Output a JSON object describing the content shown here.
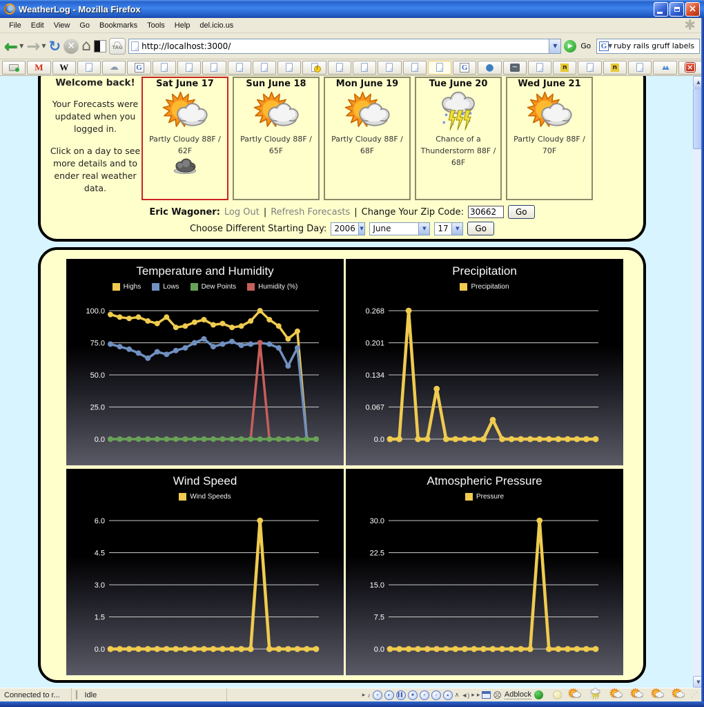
{
  "window": {
    "title": "WeatherLog - Mozilla Firefox"
  },
  "menu": {
    "items": [
      "File",
      "Edit",
      "View",
      "Go",
      "Bookmarks",
      "Tools",
      "Help",
      "del.icio.us"
    ]
  },
  "toolbar": {
    "url": "http://localhost:3000/",
    "go_label": "Go",
    "search_value": "ruby rails gruff labels",
    "tag_label": "TAG"
  },
  "bookmarks": [
    "printer-icon",
    "gmail-icon",
    "wikipedia-icon",
    "page-icon",
    "cloud-icon",
    "google-icon",
    "page-icon",
    "page-icon",
    "page-icon",
    "page-icon",
    "page-icon",
    "page-icon",
    "alert-page-icon",
    "page-icon",
    "page-icon",
    "page-icon",
    "page-icon",
    "selected-page-icon",
    "google-icon",
    "drupal-icon",
    "wave-icon",
    "page-icon",
    "npr-icon",
    "page-icon",
    "npr-icon",
    "page-icon",
    "mountain-icon",
    "close-icon"
  ],
  "panel": {
    "sidebar": {
      "heading": "Welcome back!",
      "para1": "Your Forecasts were updated when you logged in.",
      "para2": "Click on a day to see more details and to ender real weather data."
    }
  },
  "forecast": {
    "days": [
      {
        "label": "Sat June 17",
        "condition": "Partly Cloudy 88F / 62F",
        "icon": "partly-cloudy",
        "selected": true,
        "extra_icon": "dark-cloud"
      },
      {
        "label": "Sun June 18",
        "condition": "Partly Cloudy 88F / 65F",
        "icon": "partly-cloudy",
        "selected": false
      },
      {
        "label": "Mon June 19",
        "condition": "Partly Cloudy 88F / 68F",
        "icon": "partly-cloudy",
        "selected": false
      },
      {
        "label": "Tue June 20",
        "condition": "Chance of a Thunderstorm 88F / 68F",
        "icon": "thunderstorm",
        "selected": false
      },
      {
        "label": "Wed June 21",
        "condition": "Partly Cloudy 88F / 70F",
        "icon": "partly-cloudy",
        "selected": false
      }
    ]
  },
  "account": {
    "name": "Eric Wagoner:",
    "logout": "Log Out",
    "sep": "|",
    "refresh": "Refresh Forecasts",
    "zip_label": "Change Your Zip Code:",
    "zip_value": "30662",
    "go": "Go"
  },
  "starting": {
    "label": "Choose Different Starting Day:",
    "year": "2006",
    "month": "June",
    "day": "17",
    "go": "Go"
  },
  "chart_data": [
    {
      "type": "line",
      "title": "Temperature and Humidity",
      "xlabel": "",
      "ylabel": "",
      "ylim": [
        0,
        100
      ],
      "ytick_labels": [
        "100.0",
        "75.0",
        "50.0",
        "25.0",
        "0.0"
      ],
      "grid": true,
      "legend_position": "top",
      "x_note": "23 consecutive forecast days, unlabeled x-axis",
      "draw_order": [
        0,
        1,
        3,
        2
      ],
      "series": [
        {
          "name": "Highs",
          "color": "#EFCB4F",
          "values": [
            97,
            95,
            94,
            95,
            92,
            90,
            95,
            87,
            88,
            91,
            93,
            89,
            90,
            87,
            88,
            92,
            100,
            93,
            88,
            78,
            84,
            0,
            0
          ]
        },
        {
          "name": "Lows",
          "color": "#7090C0",
          "values": [
            74,
            72,
            70,
            67,
            63,
            68,
            66,
            69,
            71,
            75,
            78,
            72,
            74,
            76,
            73,
            74,
            75,
            74,
            71,
            57,
            71,
            0,
            0
          ]
        },
        {
          "name": "Dew Points",
          "color": "#66A356",
          "values": [
            0,
            0,
            0,
            0,
            0,
            0,
            0,
            0,
            0,
            0,
            0,
            0,
            0,
            0,
            0,
            0,
            0,
            0,
            0,
            0,
            0,
            0,
            0
          ]
        },
        {
          "name": "Humidity (%)",
          "color": "#C75F5B",
          "values": [
            0,
            0,
            0,
            0,
            0,
            0,
            0,
            0,
            0,
            0,
            0,
            0,
            0,
            0,
            0,
            0,
            75,
            0,
            0,
            0,
            0,
            0,
            0
          ]
        }
      ]
    },
    {
      "type": "line",
      "title": "Precipitation",
      "xlabel": "",
      "ylabel": "",
      "ylim": [
        0,
        0.268
      ],
      "ytick_labels": [
        "0.268",
        "0.201",
        "0.134",
        "0.067",
        "0.0"
      ],
      "grid": true,
      "legend_position": "top",
      "series": [
        {
          "name": "Precipitation",
          "color": "#EFCB4F",
          "values": [
            0,
            0,
            0.268,
            0,
            0,
            0.105,
            0,
            0,
            0,
            0,
            0,
            0.04,
            0,
            0,
            0,
            0,
            0,
            0,
            0,
            0,
            0,
            0,
            0
          ]
        }
      ]
    },
    {
      "type": "line",
      "title": "Wind Speed",
      "xlabel": "",
      "ylabel": "",
      "ylim": [
        0,
        6
      ],
      "ytick_labels": [
        "6.0",
        "4.5",
        "3.0",
        "1.5",
        "0.0"
      ],
      "grid": true,
      "legend_position": "top",
      "series": [
        {
          "name": "Wind Speeds",
          "color": "#EFCB4F",
          "values": [
            0,
            0,
            0,
            0,
            0,
            0,
            0,
            0,
            0,
            0,
            0,
            0,
            0,
            0,
            0,
            0,
            6,
            0,
            0,
            0,
            0,
            0,
            0
          ]
        }
      ]
    },
    {
      "type": "line",
      "title": "Atmospheric Pressure",
      "xlabel": "",
      "ylabel": "",
      "ylim": [
        0,
        30
      ],
      "ytick_labels": [
        "30.0",
        "22.5",
        "15.0",
        "7.5",
        "0.0"
      ],
      "grid": true,
      "legend_position": "top",
      "series": [
        {
          "name": "Pressure",
          "color": "#EFCB4F",
          "values": [
            0,
            0,
            0,
            0,
            0,
            0,
            0,
            0,
            0,
            0,
            0,
            0,
            0,
            0,
            0,
            0,
            30,
            0,
            0,
            0,
            0,
            0,
            0
          ]
        }
      ]
    }
  ],
  "statusbar": {
    "connection": "Connected to r...",
    "idle": "Idle",
    "adblock": "Adblock",
    "media_controls": [
      "expander-arrow-icon",
      "turntable-icon",
      "prev-button",
      "play-button",
      "pause-button",
      "stop-button",
      "next-button",
      "note-button",
      "eject-button",
      "collapse-chevron-icon",
      "volume-icon",
      "expander-arrow-icon",
      "expander-arrow-icon",
      "window-icon",
      "sad-face-icon"
    ],
    "weather_icons": [
      "partly-cloudy",
      "thunderstorm",
      "partly-cloudy",
      "partly-cloudy",
      "partly-cloudy",
      "partly-cloudy"
    ]
  },
  "colors": {
    "series_yellow": "#EFCB4F",
    "series_blue": "#7090C0",
    "series_green": "#66A356",
    "series_red": "#C75F5B",
    "panel_bg": "#FFFFCC",
    "page_bg": "#D8F4FF",
    "selected_card_border": "#CC2222"
  }
}
